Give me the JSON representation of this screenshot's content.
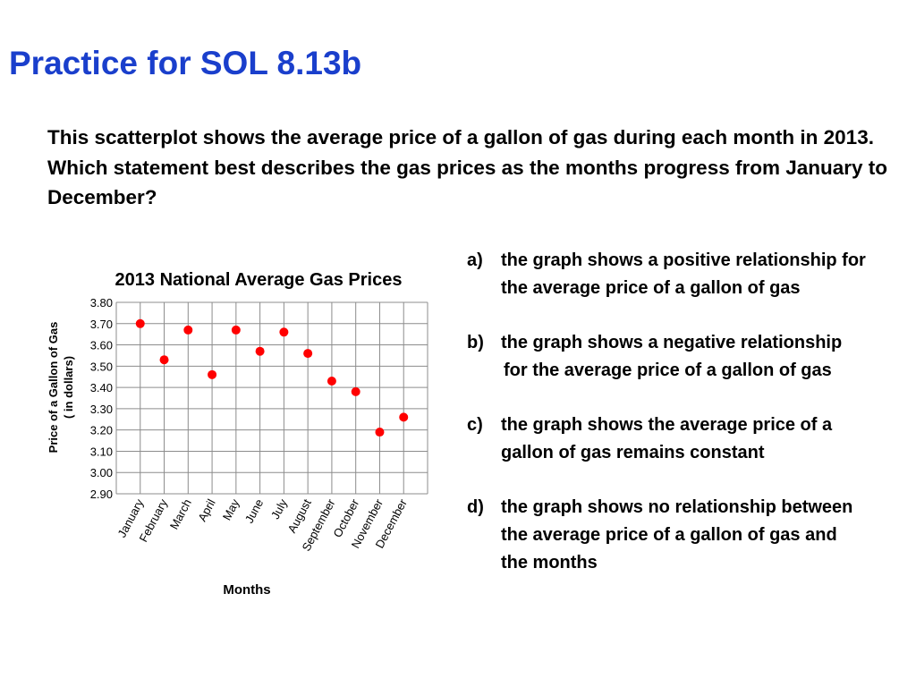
{
  "slide": {
    "title": "Practice for SOL 8.13b",
    "question": "This scatterplot shows the average price of a gallon of gas during each month in 2013.   Which statement best describes the gas prices as the months progress from January to December?"
  },
  "answers": [
    {
      "letter": "a)",
      "line1": "the graph shows a positive relationship for",
      "line2": "the average price of a gallon of gas",
      "line3": ""
    },
    {
      "letter": "b)",
      "line1": "the graph shows a negative relationship",
      "line2": "for the average price of a gallon of gas",
      "line3": ""
    },
    {
      "letter": "c)",
      "line1": "the graph shows the average price of a",
      "line2": "gallon of gas remains constant",
      "line3": ""
    },
    {
      "letter": "d)",
      "line1": "the graph shows no relationship between",
      "line2": "the average  price of a gallon of gas and",
      "line3": "the months"
    }
  ],
  "chart_data": {
    "type": "scatter",
    "title": "2013 National Average Gas Prices",
    "xlabel": "Months",
    "ylabel_line1": "Price of  a Gallon of Gas",
    "ylabel_line2": "( in dollars)",
    "categories": [
      "January",
      "February",
      "March",
      "April",
      "May",
      "June",
      "July",
      "August",
      "September",
      "October",
      "November",
      "December"
    ],
    "values": [
      3.7,
      3.53,
      3.67,
      3.46,
      3.67,
      3.57,
      3.66,
      3.56,
      3.43,
      3.38,
      3.19,
      3.26
    ],
    "yticks": [
      "2.90",
      "3.00",
      "3.10",
      "3.20",
      "3.30",
      "3.40",
      "3.50",
      "3.60",
      "3.70",
      "3.80"
    ],
    "ylim": [
      2.9,
      3.8
    ],
    "grid": true,
    "legend": "none",
    "marker_color": "#ff0000",
    "grid_color": "#8c8c8c"
  }
}
